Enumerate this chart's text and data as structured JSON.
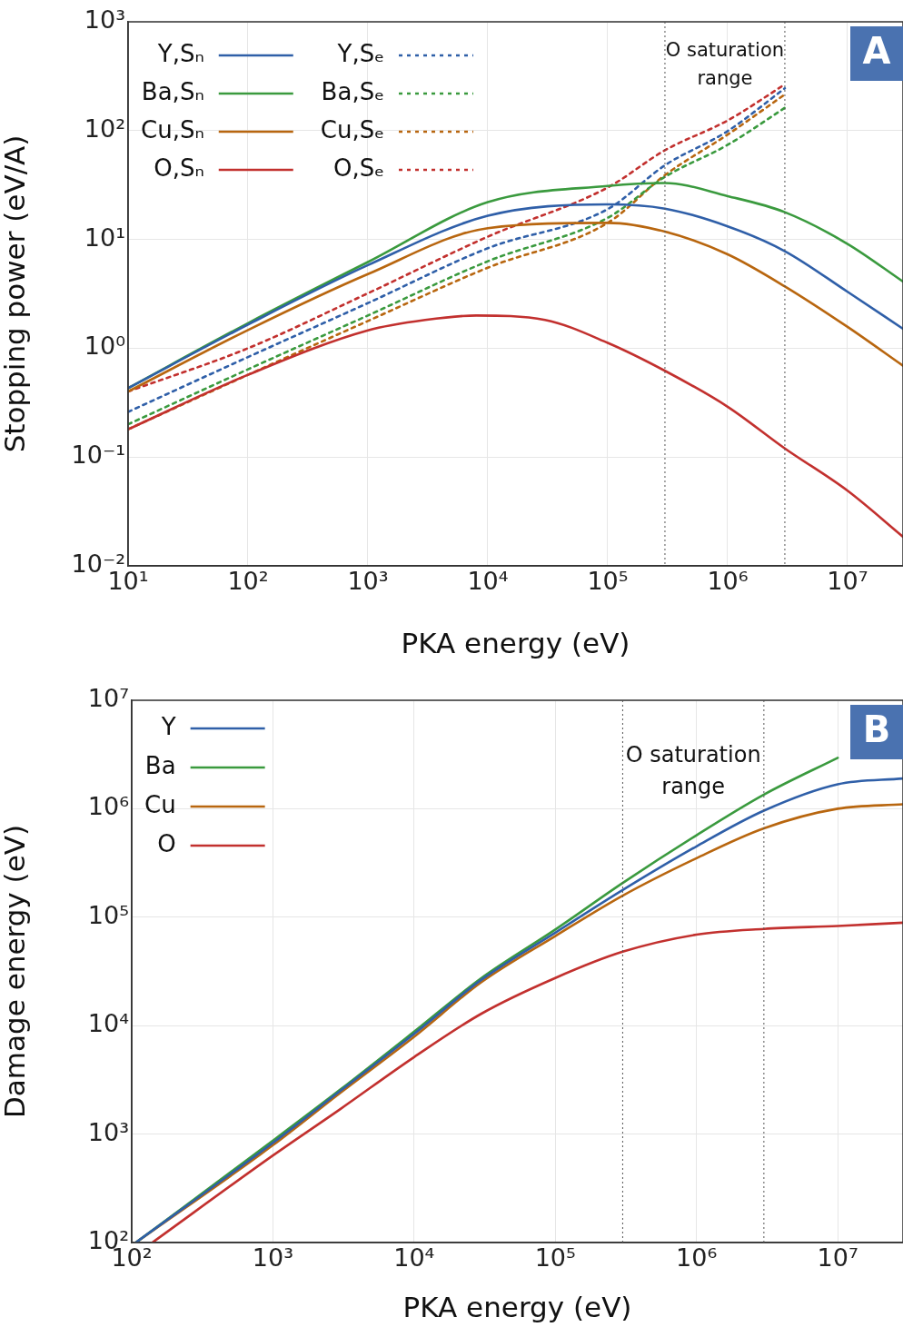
{
  "chart_data": [
    {
      "type": "line",
      "xlabel": "PKA energy (eV)",
      "ylabel": "Stopping power (eV/A)",
      "log": "xy",
      "grid": true,
      "legend": "top left",
      "marker": "none",
      "xlim": [
        10,
        29000000
      ],
      "ylim": [
        0.01,
        1000
      ],
      "xticks": [
        {
          "value": 10,
          "label": "10¹"
        },
        {
          "value": 100,
          "label": "10²"
        },
        {
          "value": 1000,
          "label": "10³"
        },
        {
          "value": 10000,
          "label": "10⁴"
        },
        {
          "value": 100000,
          "label": "10⁵"
        },
        {
          "value": 1000000,
          "label": "10⁶"
        },
        {
          "value": 10000000,
          "label": "10⁷"
        }
      ],
      "yticks": [
        {
          "value": 0.01,
          "label": "10⁻²"
        },
        {
          "value": 0.1,
          "label": "10⁻¹"
        },
        {
          "value": 1,
          "label": "10⁰"
        },
        {
          "value": 10,
          "label": "10¹"
        },
        {
          "value": 100,
          "label": "10²"
        },
        {
          "value": 1000,
          "label": "10³"
        }
      ],
      "ref_lines": [
        {
          "axis": "x",
          "value": 300000,
          "color": "#555555",
          "line_style": "dotted"
        },
        {
          "axis": "x",
          "value": 3000000,
          "color": "#555555",
          "line_style": "dotted"
        }
      ],
      "annotations": [
        "O saturation range",
        "A"
      ],
      "x": [
        10,
        100,
        1000,
        10000,
        100000,
        300000,
        1000000,
        3000000,
        10000000,
        29000000
      ],
      "series": [
        {
          "name": "Y,Sₙ",
          "color": "#2f5fa8",
          "line_style": "solid",
          "values": [
            0.43,
            1.65,
            5.8,
            16.5,
            21,
            19.2,
            13.2,
            7.8,
            3.3,
            1.51
          ]
        },
        {
          "name": "Ba,Sₙ",
          "color": "#3a9a3e",
          "line_style": "solid",
          "values": [
            0.43,
            1.7,
            6.2,
            22,
            31,
            33,
            25,
            17.8,
            9.1,
            4.1
          ]
        },
        {
          "name": "Cu,Sₙ",
          "color": "#b8660f",
          "line_style": "solid",
          "values": [
            0.4,
            1.47,
            4.8,
            12.7,
            14.2,
            11.8,
            7.3,
            3.7,
            1.57,
            0.69
          ]
        },
        {
          "name": "O,Sₙ",
          "color": "#c2302e",
          "line_style": "solid",
          "x": [
            10,
            100,
            1000,
            3000,
            8000,
            30000,
            100000,
            300000,
            1000000,
            3000000,
            10000000,
            29000000
          ],
          "values": [
            0.18,
            0.57,
            1.46,
            1.82,
            2.0,
            1.82,
            1.12,
            0.62,
            0.29,
            0.12,
            0.049,
            0.0185
          ]
        },
        {
          "name": "Y,Sₑ",
          "color": "#2f5fa8",
          "line_style": "dashed",
          "x": [
            10,
            100,
            1000,
            10000,
            100000,
            300000,
            1000000,
            3000000
          ],
          "values": [
            0.26,
            0.83,
            2.6,
            8.3,
            19,
            48,
            99,
            245
          ]
        },
        {
          "name": "Ba,Sₑ",
          "color": "#3a9a3e",
          "line_style": "dashed",
          "x": [
            10,
            100,
            1000,
            10000,
            100000,
            300000,
            1000000,
            3000000
          ],
          "values": [
            0.2,
            0.64,
            2.0,
            6.3,
            15.8,
            37.6,
            74,
            162
          ]
        },
        {
          "name": "Cu,Sₑ",
          "color": "#b8660f",
          "line_style": "dashed",
          "x": [
            10,
            100,
            1000,
            10000,
            100000,
            300000,
            1000000,
            3000000
          ],
          "values": [
            0.18,
            0.57,
            1.78,
            5.5,
            14.2,
            39,
            92,
            215
          ]
        },
        {
          "name": "O,Sₑ",
          "color": "#c2302e",
          "line_style": "dashed",
          "x": [
            10,
            100,
            1000,
            10000,
            100000,
            300000,
            1000000,
            3000000
          ],
          "values": [
            0.4,
            1.0,
            3.2,
            10.6,
            30,
            66,
            124,
            266
          ]
        }
      ]
    },
    {
      "type": "line",
      "xlabel": "PKA energy (eV)",
      "ylabel": "Damage energy (eV)",
      "log": "xy",
      "grid": true,
      "legend": "top left",
      "marker": "none",
      "xlim": [
        100,
        29000000
      ],
      "ylim": [
        100,
        10000000
      ],
      "xticks": [
        {
          "value": 100,
          "label": "10²"
        },
        {
          "value": 1000,
          "label": "10³"
        },
        {
          "value": 10000,
          "label": "10⁴"
        },
        {
          "value": 100000,
          "label": "10⁵"
        },
        {
          "value": 1000000,
          "label": "10⁶"
        },
        {
          "value": 10000000,
          "label": "10⁷"
        }
      ],
      "yticks": [
        {
          "value": 100,
          "label": "10²"
        },
        {
          "value": 1000,
          "label": "10³"
        },
        {
          "value": 10000,
          "label": "10⁴"
        },
        {
          "value": 100000,
          "label": "10⁵"
        },
        {
          "value": 1000000,
          "label": "10⁶"
        },
        {
          "value": 10000000,
          "label": "10⁷"
        }
      ],
      "ref_lines": [
        {
          "axis": "x",
          "value": 300000,
          "color": "#555555",
          "line_style": "dotted"
        },
        {
          "axis": "x",
          "value": 3000000,
          "color": "#555555",
          "line_style": "dotted"
        }
      ],
      "annotations": [
        "O saturation range",
        "B"
      ],
      "x": [
        107,
        1000,
        3000,
        10000,
        30000,
        100000,
        300000,
        1000000,
        3000000,
        10000000,
        29000000
      ],
      "series": [
        {
          "name": "Y",
          "color": "#2f5fa8",
          "line_style": "solid",
          "values": [
            100,
            830,
            2500,
            8400,
            26500,
            72000,
            178000,
            450000,
            960000,
            1680000,
            1900000
          ]
        },
        {
          "name": "Ba",
          "color": "#3a9a3e",
          "line_style": "solid",
          "values": [
            100,
            870,
            2570,
            8800,
            27500,
            77000,
            207000,
            570000,
            1350000,
            2950000,
            null
          ]
        },
        {
          "name": "Cu",
          "color": "#b8660f",
          "line_style": "solid",
          "values": [
            100,
            790,
            2400,
            7900,
            25200,
            67000,
            158000,
            350000,
            660000,
            1000000,
            1100000
          ]
        },
        {
          "name": "O",
          "color": "#c2302e",
          "line_style": "solid",
          "x": [
            140,
            1000,
            3000,
            10000,
            30000,
            100000,
            300000,
            1000000,
            3000000,
            10000000,
            29000000
          ],
          "values": [
            100,
            635,
            1700,
            5130,
            12900,
            27500,
            48000,
            69000,
            78000,
            83000,
            89000
          ]
        }
      ]
    }
  ]
}
